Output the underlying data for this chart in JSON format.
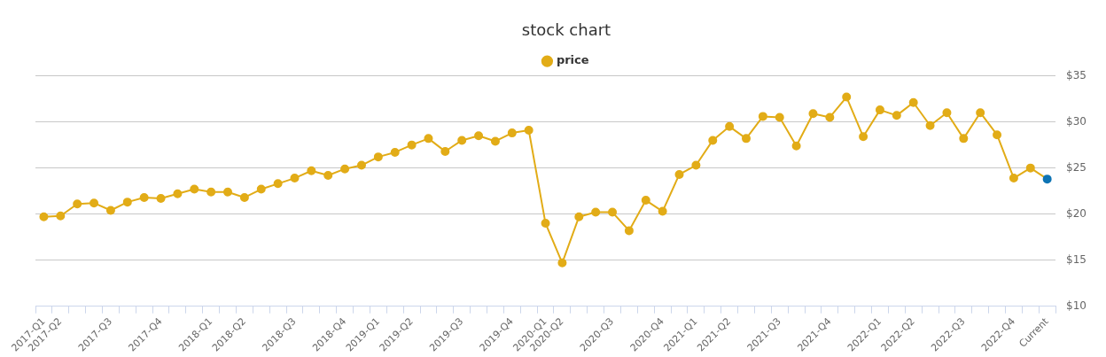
{
  "chart_data": {
    "type": "line",
    "title": "stock chart",
    "categories": [
      "2017-Q1",
      "2017-Q2",
      null,
      null,
      "2017-Q3",
      null,
      null,
      "2017-Q4",
      null,
      null,
      "2018-Q1",
      null,
      "2018-Q2",
      null,
      null,
      "2018-Q3",
      null,
      null,
      "2018-Q4",
      null,
      "2019-Q1",
      null,
      "2019-Q2",
      null,
      null,
      "2019-Q3",
      null,
      null,
      "2019-Q4",
      null,
      "2020-Q1",
      "2020-Q2",
      null,
      null,
      "2020-Q3",
      null,
      null,
      "2020-Q4",
      null,
      "2021-Q1",
      null,
      "2021-Q2",
      null,
      null,
      "2021-Q3",
      null,
      null,
      "2021-Q4",
      null,
      null,
      "2022-Q1",
      null,
      "2022-Q2",
      null,
      null,
      "2022-Q3",
      null,
      null,
      "2022-Q4",
      null,
      "Current"
    ],
    "series": [
      {
        "name": "price",
        "color": "#e2ac17",
        "colors": [
          "#e2ac17",
          "#e2ac17",
          "#e2ac17",
          "#e2ac17",
          "#e2ac17",
          "#e2ac17",
          "#e2ac17",
          "#e2ac17",
          "#e2ac17",
          "#e2ac17",
          "#e2ac17",
          "#e2ac17",
          "#e2ac17",
          "#e2ac17",
          "#e2ac17",
          "#e2ac17",
          "#e2ac17",
          "#e2ac17",
          "#e2ac17",
          "#e2ac17",
          "#e2ac17",
          "#e2ac17",
          "#e2ac17",
          "#e2ac17",
          "#e2ac17",
          "#e2ac17",
          "#e2ac17",
          "#e2ac17",
          "#e2ac17",
          "#e2ac17",
          "#e2ac17",
          "#e2ac17",
          "#e2ac17",
          "#e2ac17",
          "#e2ac17",
          "#e2ac17",
          "#e2ac17",
          "#e2ac17",
          "#e2ac17",
          "#e2ac17",
          "#e2ac17",
          "#e2ac17",
          "#e2ac17",
          "#e2ac17",
          "#e2ac17",
          "#e2ac17",
          "#e2ac17",
          "#e2ac17",
          "#e2ac17",
          "#e2ac17",
          "#e2ac17",
          "#e2ac17",
          "#e2ac17",
          "#e2ac17",
          "#e2ac17",
          "#e2ac17",
          "#e2ac17",
          "#e2ac17",
          "#e2ac17",
          "#e2ac17",
          "#0e74b4"
        ],
        "values": [
          19.7,
          19.8,
          21.1,
          21.2,
          20.4,
          21.3,
          21.8,
          21.7,
          22.2,
          22.7,
          22.4,
          22.4,
          21.8,
          22.7,
          23.3,
          23.9,
          24.7,
          24.2,
          24.9,
          25.3,
          26.2,
          26.7,
          27.5,
          28.2,
          26.8,
          28.0,
          28.5,
          27.9,
          28.8,
          29.1,
          19.0,
          14.7,
          19.7,
          20.2,
          20.2,
          18.2,
          21.5,
          20.3,
          24.3,
          25.3,
          28.0,
          29.5,
          28.2,
          30.6,
          30.5,
          27.4,
          30.9,
          30.5,
          32.7,
          28.4,
          31.3,
          30.7,
          32.1,
          29.6,
          31.0,
          28.2,
          31.0,
          28.6,
          23.9,
          25.0,
          23.8
        ]
      }
    ],
    "ylim": [
      10,
      35
    ],
    "yticks": [
      {
        "value": 10,
        "label": "$10"
      },
      {
        "value": 15,
        "label": "$15"
      },
      {
        "value": 20,
        "label": "$20"
      },
      {
        "value": 25,
        "label": "$25"
      },
      {
        "value": 30,
        "label": "$30"
      },
      {
        "value": 35,
        "label": "$35"
      }
    ],
    "grid": "y",
    "legend": "top",
    "marker": "circle",
    "line_style": "solid"
  }
}
